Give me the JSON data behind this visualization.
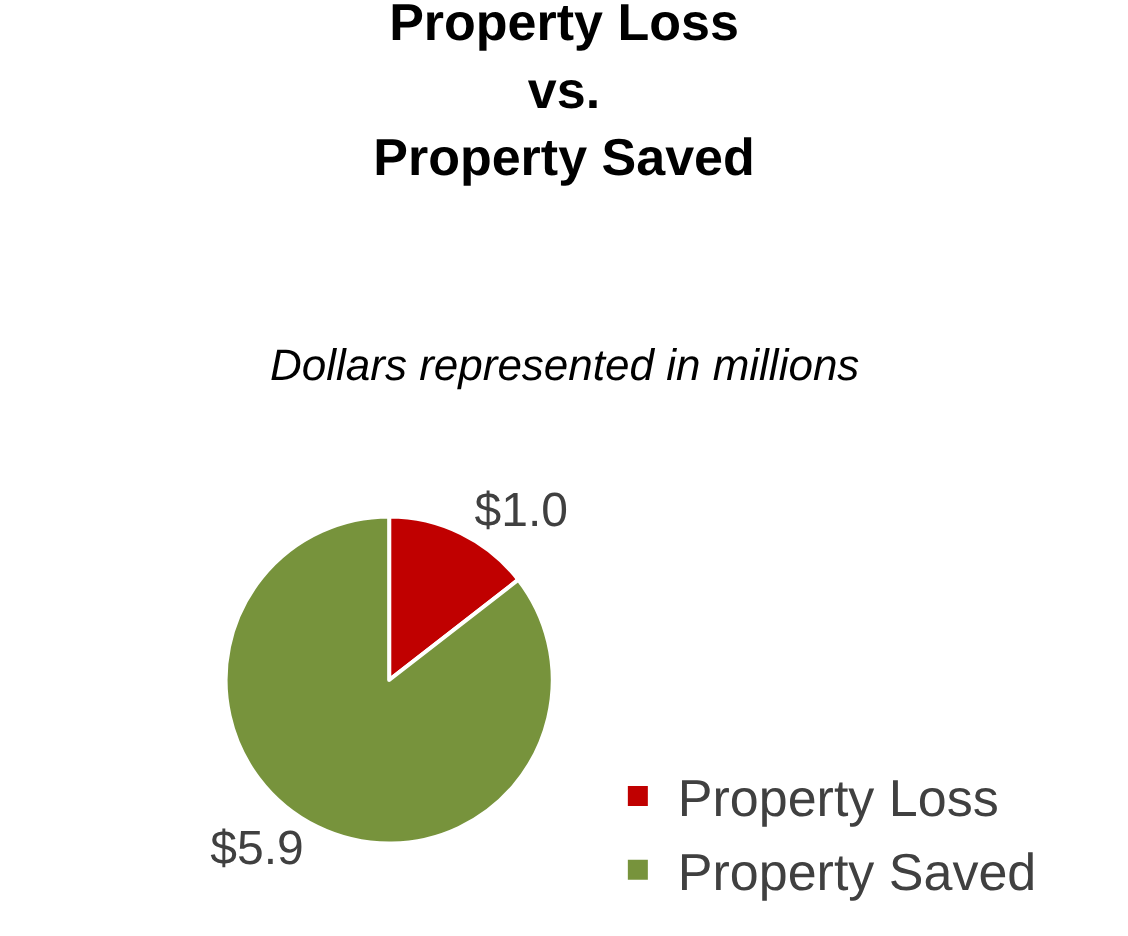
{
  "chart_data": {
    "type": "pie",
    "title": "Property Loss\nvs.\nProperty Saved",
    "subtitle": "Dollars represented in millions",
    "categories": [
      "Property Loss",
      "Property Saved"
    ],
    "values": [
      1.0,
      5.9
    ],
    "colors": [
      "#c00000",
      "#77933c"
    ],
    "value_labels": [
      "$1.0",
      "$5.9"
    ],
    "legend": "bottom right"
  }
}
